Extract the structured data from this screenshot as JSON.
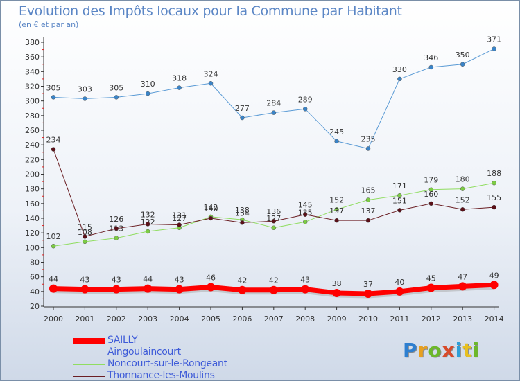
{
  "header": {
    "title": "Evolution des Impôts locaux pour la Commune par Habitant",
    "subtitle": "(en € et par an)"
  },
  "logo": {
    "letters": [
      "P",
      "r",
      "o",
      "x",
      "i",
      "t",
      "i"
    ],
    "colors": [
      "#2e7fd0",
      "#e8a020",
      "#6cb82a",
      "#d84a2a",
      "#2e9fd8",
      "#e8c020",
      "#6cb82a"
    ]
  },
  "chart_data": {
    "type": "line",
    "title": "Evolution des Impôts locaux pour la Commune par Habitant",
    "subtitle": "(en € et par an)",
    "xlabel": "",
    "ylabel": "",
    "ylim": [
      20,
      380
    ],
    "yticks": [
      20,
      40,
      60,
      80,
      100,
      120,
      140,
      160,
      180,
      200,
      220,
      240,
      260,
      280,
      300,
      320,
      340,
      360,
      380
    ],
    "grid": false,
    "legend": "bottom-left",
    "x": [
      "2000",
      "2001",
      "2002",
      "2003",
      "2004",
      "2005",
      "2006",
      "2007",
      "2008",
      "2009",
      "2010",
      "2011",
      "2012",
      "2013",
      "2014"
    ],
    "series": [
      {
        "name": "Aingoulaincourt",
        "color": "#5b9bd5",
        "dot": "#3a84c8",
        "width": 1,
        "values": [
          305,
          303,
          305,
          310,
          318,
          324,
          277,
          284,
          289,
          245,
          235,
          330,
          346,
          350,
          371
        ]
      },
      {
        "name": "Noncourt-sur-le-Rongeant",
        "color": "#90dd60",
        "dot": "#7ccc44",
        "width": 1,
        "values": [
          102,
          108,
          113,
          122,
          127,
          142,
          138,
          127,
          135,
          152,
          165,
          171,
          179,
          180,
          188
        ]
      },
      {
        "name": "Thonnance-les-Moulins",
        "color": "#6b1f24",
        "dot": "#5a1018",
        "width": 1,
        "values": [
          234,
          115,
          126,
          132,
          131,
          140,
          134,
          136,
          145,
          137,
          137,
          151,
          160,
          152,
          155
        ]
      },
      {
        "name": "SAILLY",
        "color": "#ff0000",
        "dot": "#ff0000",
        "width": 7,
        "values": [
          44,
          43,
          43,
          44,
          43,
          46,
          42,
          42,
          43,
          38,
          37,
          40,
          45,
          47,
          49
        ]
      }
    ],
    "legend_order": [
      "SAILLY",
      "Aingoulaincourt",
      "Noncourt-sur-le-Rongeant",
      "Thonnance-les-Moulins"
    ]
  }
}
